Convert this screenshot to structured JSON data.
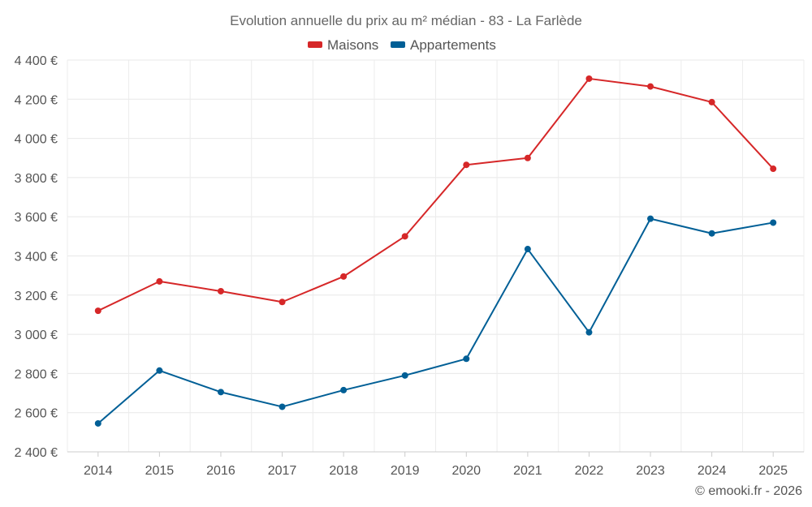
{
  "chart_data": {
    "type": "line",
    "title": "Evolution annuelle du prix au m² médian - 83 - La Farlède",
    "credit": "© emooki.fr - 2026",
    "xlabel": "",
    "ylabel": "",
    "categories": [
      "2014",
      "2015",
      "2016",
      "2017",
      "2018",
      "2019",
      "2020",
      "2021",
      "2022",
      "2023",
      "2024",
      "2025"
    ],
    "ylim": [
      2400,
      4400
    ],
    "yticks": [
      2400,
      2600,
      2800,
      3000,
      3200,
      3400,
      3600,
      3800,
      4000,
      4200,
      4400
    ],
    "ytick_labels": [
      "2 400 €",
      "2 600 €",
      "2 800 €",
      "3 000 €",
      "3 200 €",
      "3 400 €",
      "3 600 €",
      "3 800 €",
      "4 000 €",
      "4 200 €",
      "4 400 €"
    ],
    "grid": true,
    "legend_position": "top-center",
    "series": [
      {
        "name": "Maisons",
        "color": "#d62728",
        "values": [
          3120,
          3270,
          3220,
          3165,
          3295,
          3500,
          3865,
          3900,
          4305,
          4265,
          4185,
          3845
        ]
      },
      {
        "name": "Appartements",
        "color": "#005f96",
        "values": [
          2545,
          2815,
          2705,
          2630,
          2715,
          2790,
          2875,
          3435,
          3010,
          3590,
          3515,
          3570
        ]
      }
    ]
  }
}
